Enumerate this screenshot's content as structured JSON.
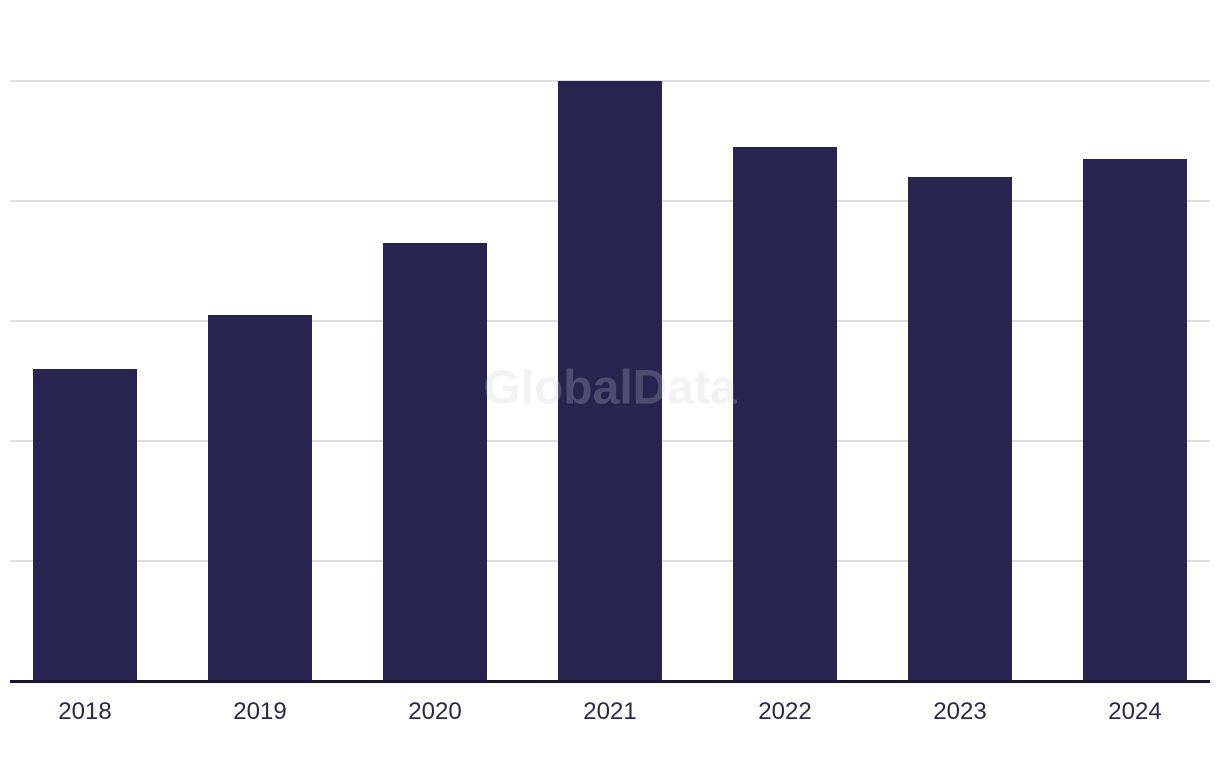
{
  "chart_data": {
    "type": "bar",
    "title": "",
    "xlabel": "",
    "ylabel": "",
    "categories": [
      "2018",
      "2019",
      "2020",
      "2021",
      "2022",
      "2023",
      "2024"
    ],
    "values": [
      52,
      61,
      73,
      100,
      89,
      84,
      87
    ],
    "ylim": [
      0,
      100
    ],
    "gridline_values": [
      20,
      40,
      60,
      80,
      100
    ],
    "grid": "horizontal",
    "y_axis_labels_visible": false,
    "legend": "none",
    "watermark": "GlobalData",
    "colors": {
      "bar": "#272550",
      "axis_line": "#171731",
      "gridline": "#dedee2",
      "tick_label": "#2b2945",
      "watermark": "#ccccd2",
      "background": "#ffffff"
    }
  }
}
